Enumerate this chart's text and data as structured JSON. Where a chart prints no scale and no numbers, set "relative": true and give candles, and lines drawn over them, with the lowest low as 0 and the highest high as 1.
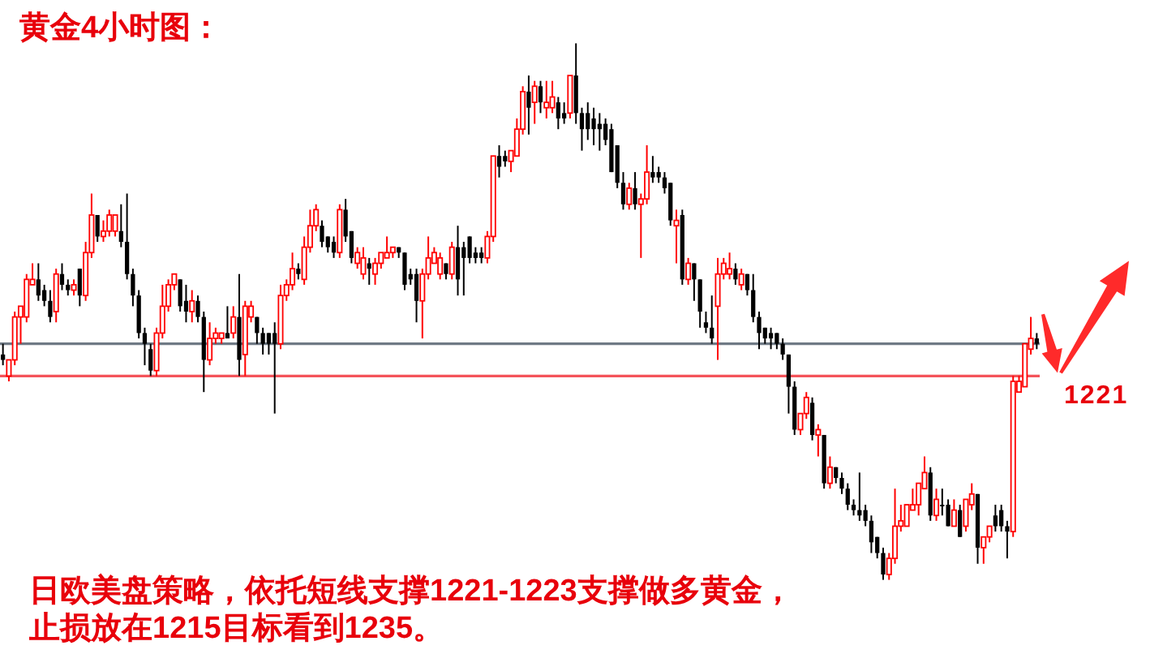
{
  "chart_data": {
    "type": "candlestick",
    "relative": true,
    "title": "黄金4小时图：",
    "annotations": [
      "日欧美盘策略，依托短线支撑1221-1223支撑做多黄金，止损放在1215目标看到1235。",
      "1221"
    ],
    "ref_lines": [
      {
        "axis": "y",
        "value": 0.44,
        "color": "#6f7a85"
      },
      {
        "axis": "y",
        "value": 0.38,
        "color": "#f4535a"
      }
    ],
    "categories": [
      null,
      null,
      null,
      null,
      null,
      null,
      null,
      null,
      null,
      null,
      null,
      null,
      null,
      null,
      null,
      null,
      null,
      null,
      null,
      null,
      null,
      null,
      null,
      null,
      null,
      null,
      null,
      null,
      null,
      null,
      null,
      null,
      null,
      null,
      null,
      null,
      null,
      null,
      null,
      null,
      null,
      null,
      null,
      null,
      null,
      null,
      null,
      null,
      null,
      null,
      null,
      null,
      null,
      null,
      null,
      null,
      null,
      null,
      null,
      null,
      null,
      null,
      null,
      null,
      null,
      null,
      null,
      null,
      null,
      null,
      null,
      null,
      null,
      null,
      null,
      null,
      null,
      null,
      null,
      null,
      null,
      null,
      null,
      null,
      null,
      null,
      null,
      null,
      null,
      null,
      null,
      null,
      null,
      null,
      null,
      null,
      null,
      null,
      null,
      null,
      null,
      null,
      null,
      null,
      null,
      null,
      null,
      null,
      null,
      null,
      null,
      null,
      null,
      null,
      null,
      null,
      null,
      null,
      null,
      null,
      null,
      null,
      null,
      null,
      null,
      null,
      null,
      null,
      null,
      null,
      null,
      null,
      null,
      null,
      null,
      null,
      null,
      null,
      null,
      null,
      null,
      null,
      null,
      null,
      null,
      null,
      null,
      null,
      null,
      null,
      null,
      null,
      null,
      null,
      null,
      null,
      null,
      null,
      null,
      null,
      null,
      null,
      null,
      null,
      null,
      null,
      null,
      null,
      null,
      null,
      null,
      null,
      null,
      null,
      null,
      null
    ],
    "ohlc": [
      [
        0.42,
        0.44,
        0.4,
        0.41
      ],
      [
        0.38,
        0.41,
        0.37,
        0.41
      ],
      [
        0.41,
        0.5,
        0.4,
        0.49
      ],
      [
        0.49,
        0.51,
        0.44,
        0.51
      ],
      [
        0.49,
        0.57,
        0.48,
        0.56
      ],
      [
        0.55,
        0.59,
        0.55,
        0.56
      ],
      [
        0.56,
        0.59,
        0.52,
        0.53
      ],
      [
        0.54,
        0.55,
        0.51,
        0.52
      ],
      [
        0.52,
        0.54,
        0.48,
        0.49
      ],
      [
        0.5,
        0.58,
        0.48,
        0.57
      ],
      [
        0.57,
        0.59,
        0.54,
        0.55
      ],
      [
        0.55,
        0.56,
        0.53,
        0.54
      ],
      [
        0.54,
        0.56,
        0.53,
        0.55
      ],
      [
        0.58,
        0.58,
        0.51,
        0.53
      ],
      [
        0.53,
        0.63,
        0.52,
        0.61
      ],
      [
        0.61,
        0.72,
        0.6,
        0.68
      ],
      [
        0.68,
        0.68,
        0.63,
        0.64
      ],
      [
        0.64,
        0.67,
        0.63,
        0.65
      ],
      [
        0.65,
        0.69,
        0.64,
        0.68
      ],
      [
        0.65,
        0.68,
        0.64,
        0.68
      ],
      [
        0.65,
        0.7,
        0.62,
        0.63
      ],
      [
        0.63,
        0.72,
        0.56,
        0.57
      ],
      [
        0.57,
        0.58,
        0.51,
        0.53
      ],
      [
        0.53,
        0.54,
        0.45,
        0.46
      ],
      [
        0.46,
        0.47,
        0.4,
        0.44
      ],
      [
        0.43,
        0.44,
        0.38,
        0.39
      ],
      [
        0.39,
        0.47,
        0.38,
        0.46
      ],
      [
        0.46,
        0.55,
        0.45,
        0.51
      ],
      [
        0.51,
        0.56,
        0.5,
        0.55
      ],
      [
        0.55,
        0.57,
        0.54,
        0.57
      ],
      [
        0.56,
        0.56,
        0.5,
        0.51
      ],
      [
        0.52,
        0.55,
        0.48,
        0.5
      ],
      [
        0.5,
        0.54,
        0.48,
        0.52
      ],
      [
        0.52,
        0.53,
        0.48,
        0.49
      ],
      [
        0.49,
        0.5,
        0.35,
        0.41
      ],
      [
        0.41,
        0.48,
        0.4,
        0.45
      ],
      [
        0.45,
        0.47,
        0.44,
        0.46
      ],
      [
        0.45,
        0.46,
        0.44,
        0.46
      ],
      [
        0.46,
        0.51,
        0.45,
        0.45
      ],
      [
        0.46,
        0.51,
        0.45,
        0.49
      ],
      [
        0.49,
        0.57,
        0.38,
        0.41
      ],
      [
        0.42,
        0.52,
        0.38,
        0.51
      ],
      [
        0.49,
        0.52,
        0.48,
        0.51
      ],
      [
        0.49,
        0.49,
        0.44,
        0.46
      ],
      [
        0.46,
        0.47,
        0.42,
        0.44
      ],
      [
        0.46,
        0.46,
        0.42,
        0.44
      ],
      [
        0.46,
        0.48,
        0.31,
        0.44
      ],
      [
        0.44,
        0.55,
        0.43,
        0.53
      ],
      [
        0.53,
        0.56,
        0.52,
        0.55
      ],
      [
        0.55,
        0.61,
        0.54,
        0.58
      ],
      [
        0.58,
        0.59,
        0.56,
        0.57
      ],
      [
        0.56,
        0.64,
        0.55,
        0.62
      ],
      [
        0.62,
        0.69,
        0.61,
        0.66
      ],
      [
        0.66,
        0.7,
        0.65,
        0.69
      ],
      [
        0.66,
        0.67,
        0.62,
        0.63
      ],
      [
        0.64,
        0.64,
        0.61,
        0.62
      ],
      [
        0.63,
        0.64,
        0.6,
        0.61
      ],
      [
        0.61,
        0.7,
        0.6,
        0.69
      ],
      [
        0.69,
        0.71,
        0.63,
        0.64
      ],
      [
        0.65,
        0.65,
        0.59,
        0.6
      ],
      [
        0.59,
        0.62,
        0.58,
        0.61
      ],
      [
        0.57,
        0.62,
        0.56,
        0.6
      ],
      [
        0.59,
        0.6,
        0.55,
        0.58
      ],
      [
        0.57,
        0.6,
        0.55,
        0.59
      ],
      [
        0.59,
        0.61,
        0.58,
        0.61
      ],
      [
        0.6,
        0.64,
        0.6,
        0.61
      ],
      [
        0.61,
        0.62,
        0.6,
        0.62
      ],
      [
        0.62,
        0.62,
        0.6,
        0.61
      ],
      [
        0.61,
        0.61,
        0.54,
        0.55
      ],
      [
        0.57,
        0.58,
        0.55,
        0.56
      ],
      [
        0.57,
        0.58,
        0.48,
        0.52
      ],
      [
        0.52,
        0.58,
        0.45,
        0.57
      ],
      [
        0.57,
        0.64,
        0.56,
        0.6
      ],
      [
        0.59,
        0.62,
        0.59,
        0.61
      ],
      [
        0.57,
        0.61,
        0.56,
        0.6
      ],
      [
        0.59,
        0.59,
        0.56,
        0.57
      ],
      [
        0.57,
        0.63,
        0.56,
        0.62
      ],
      [
        0.62,
        0.66,
        0.53,
        0.56
      ],
      [
        0.62,
        0.63,
        0.53,
        0.6
      ],
      [
        0.64,
        0.64,
        0.59,
        0.6
      ],
      [
        0.61,
        0.62,
        0.59,
        0.6
      ],
      [
        0.61,
        0.62,
        0.59,
        0.6
      ],
      [
        0.6,
        0.65,
        0.59,
        0.64
      ],
      [
        0.64,
        0.79,
        0.63,
        0.79
      ],
      [
        0.79,
        0.81,
        0.75,
        0.77
      ],
      [
        0.79,
        0.8,
        0.77,
        0.78
      ],
      [
        0.78,
        0.8,
        0.76,
        0.8
      ],
      [
        0.79,
        0.86,
        0.79,
        0.84
      ],
      [
        0.84,
        0.92,
        0.83,
        0.91
      ],
      [
        0.91,
        0.94,
        0.83,
        0.88
      ],
      [
        0.89,
        0.93,
        0.85,
        0.92
      ],
      [
        0.92,
        0.93,
        0.87,
        0.89
      ],
      [
        0.88,
        0.93,
        0.86,
        0.89
      ],
      [
        0.88,
        0.93,
        0.87,
        0.9
      ],
      [
        0.89,
        0.9,
        0.84,
        0.86
      ],
      [
        0.87,
        0.89,
        0.85,
        0.86
      ],
      [
        0.87,
        0.94,
        0.86,
        0.94
      ],
      [
        0.94,
        1.0,
        0.85,
        0.87
      ],
      [
        0.87,
        0.88,
        0.8,
        0.84
      ],
      [
        0.87,
        0.89,
        0.82,
        0.84
      ],
      [
        0.86,
        0.88,
        0.81,
        0.84
      ],
      [
        0.85,
        0.87,
        0.8,
        0.84
      ],
      [
        0.85,
        0.86,
        0.81,
        0.82
      ],
      [
        0.84,
        0.85,
        0.76,
        0.76
      ],
      [
        0.81,
        0.81,
        0.73,
        0.74
      ],
      [
        0.74,
        0.76,
        0.69,
        0.7
      ],
      [
        0.7,
        0.74,
        0.69,
        0.73
      ],
      [
        0.73,
        0.76,
        0.69,
        0.7
      ],
      [
        0.7,
        0.72,
        0.6,
        0.71
      ],
      [
        0.71,
        0.81,
        0.7,
        0.76
      ],
      [
        0.76,
        0.79,
        0.74,
        0.75
      ],
      [
        0.76,
        0.77,
        0.74,
        0.75
      ],
      [
        0.75,
        0.76,
        0.72,
        0.73
      ],
      [
        0.74,
        0.74,
        0.66,
        0.67
      ],
      [
        0.66,
        0.69,
        0.59,
        0.67
      ],
      [
        0.68,
        0.69,
        0.55,
        0.56
      ],
      [
        0.56,
        0.6,
        0.55,
        0.59
      ],
      [
        0.59,
        0.59,
        0.52,
        0.56
      ],
      [
        0.56,
        0.56,
        0.47,
        0.5
      ],
      [
        0.48,
        0.5,
        0.46,
        0.47
      ],
      [
        0.47,
        0.53,
        0.44,
        0.45
      ],
      [
        0.51,
        0.6,
        0.41,
        0.57
      ],
      [
        0.57,
        0.6,
        0.56,
        0.59
      ],
      [
        0.57,
        0.61,
        0.56,
        0.58
      ],
      [
        0.58,
        0.59,
        0.55,
        0.56
      ],
      [
        0.55,
        0.58,
        0.54,
        0.57
      ],
      [
        0.57,
        0.57,
        0.53,
        0.54
      ],
      [
        0.54,
        0.57,
        0.48,
        0.49
      ],
      [
        0.49,
        0.5,
        0.43,
        0.46
      ],
      [
        0.47,
        0.47,
        0.44,
        0.45
      ],
      [
        0.46,
        0.47,
        0.43,
        0.45
      ],
      [
        0.46,
        0.46,
        0.43,
        0.44
      ],
      [
        0.44,
        0.45,
        0.41,
        0.42
      ],
      [
        0.42,
        0.42,
        0.31,
        0.36
      ],
      [
        0.36,
        0.37,
        0.27,
        0.28
      ],
      [
        0.28,
        0.31,
        0.27,
        0.31
      ],
      [
        0.31,
        0.35,
        0.3,
        0.34
      ],
      [
        0.33,
        0.34,
        0.26,
        0.27
      ],
      [
        0.27,
        0.29,
        0.23,
        0.28
      ],
      [
        0.27,
        0.27,
        0.17,
        0.18
      ],
      [
        0.18,
        0.23,
        0.17,
        0.21
      ],
      [
        0.21,
        0.21,
        0.18,
        0.19
      ],
      [
        0.19,
        0.2,
        0.16,
        0.17
      ],
      [
        0.17,
        0.18,
        0.13,
        0.14
      ],
      [
        0.14,
        0.15,
        0.12,
        0.13
      ],
      [
        0.13,
        0.2,
        0.11,
        0.12
      ],
      [
        0.13,
        0.14,
        0.1,
        0.11
      ],
      [
        0.11,
        0.12,
        0.05,
        0.07
      ],
      [
        0.08,
        0.08,
        0.04,
        0.05
      ],
      [
        0.05,
        0.06,
        0.0,
        0.01
      ],
      [
        0.01,
        0.05,
        0.0,
        0.04
      ],
      [
        0.04,
        0.17,
        0.03,
        0.1
      ],
      [
        0.1,
        0.14,
        0.09,
        0.11
      ],
      [
        0.1,
        0.14,
        0.1,
        0.14
      ],
      [
        0.13,
        0.17,
        0.13,
        0.14
      ],
      [
        0.14,
        0.18,
        0.12,
        0.18
      ],
      [
        0.17,
        0.23,
        0.17,
        0.2
      ],
      [
        0.2,
        0.21,
        0.11,
        0.12
      ],
      [
        0.12,
        0.17,
        0.11,
        0.15
      ],
      [
        0.14,
        0.17,
        0.12,
        0.14
      ],
      [
        0.14,
        0.15,
        0.1,
        0.1
      ],
      [
        0.1,
        0.15,
        0.1,
        0.13
      ],
      [
        0.13,
        0.14,
        0.08,
        0.08
      ],
      [
        0.1,
        0.15,
        0.09,
        0.15
      ],
      [
        0.14,
        0.18,
        0.13,
        0.16
      ],
      [
        0.16,
        0.16,
        0.03,
        0.06
      ],
      [
        0.06,
        0.08,
        0.03,
        0.08
      ],
      [
        0.08,
        0.1,
        0.07,
        0.1
      ],
      [
        0.12,
        0.14,
        0.09,
        0.1
      ],
      [
        0.13,
        0.14,
        0.09,
        0.1
      ],
      [
        0.1,
        0.11,
        0.04,
        0.09
      ],
      [
        0.09,
        0.38,
        0.08,
        0.37
      ],
      [
        0.35,
        0.38,
        0.35,
        0.37
      ],
      [
        0.36,
        0.44,
        0.36,
        0.44
      ],
      [
        0.43,
        0.49,
        0.42,
        0.45
      ],
      [
        0.45,
        0.46,
        0.43,
        0.44
      ]
    ],
    "colors": [
      "#000000",
      "#ff0000",
      "#ff0000",
      "#ff0000",
      "#ff0000",
      "#ff0000",
      "#000000",
      "#000000",
      "#000000",
      "#ff0000",
      "#000000",
      "#000000",
      "#ff0000",
      "#000000",
      "#ff0000",
      "#ff0000",
      "#000000",
      "#ff0000",
      "#ff0000",
      "#ff0000",
      "#000000",
      "#000000",
      "#000000",
      "#000000",
      "#000000",
      "#000000",
      "#ff0000",
      "#ff0000",
      "#ff0000",
      "#ff0000",
      "#000000",
      "#000000",
      "#ff0000",
      "#000000",
      "#000000",
      "#ff0000",
      "#ff0000",
      "#ff0000",
      "#000000",
      "#ff0000",
      "#000000",
      "#ff0000",
      "#ff0000",
      "#000000",
      "#000000",
      "#000000",
      "#000000",
      "#ff0000",
      "#ff0000",
      "#ff0000",
      "#000000",
      "#ff0000",
      "#ff0000",
      "#ff0000",
      "#000000",
      "#000000",
      "#000000",
      "#ff0000",
      "#000000",
      "#000000",
      "#ff0000",
      "#ff0000",
      "#000000",
      "#ff0000",
      "#ff0000",
      "#ff0000",
      "#ff0000",
      "#000000",
      "#000000",
      "#000000",
      "#000000",
      "#ff0000",
      "#ff0000",
      "#ff0000",
      "#ff0000",
      "#000000",
      "#ff0000",
      "#000000",
      "#000000",
      "#000000",
      "#000000",
      "#000000",
      "#ff0000",
      "#ff0000",
      "#000000",
      "#000000",
      "#ff0000",
      "#ff0000",
      "#ff0000",
      "#000000",
      "#ff0000",
      "#000000",
      "#ff0000",
      "#ff0000",
      "#000000",
      "#000000",
      "#ff0000",
      "#000000",
      "#000000",
      "#000000",
      "#000000",
      "#000000",
      "#000000",
      "#000000",
      "#000000",
      "#000000",
      "#ff0000",
      "#000000",
      "#ff0000",
      "#ff0000",
      "#000000",
      "#000000",
      "#000000",
      "#000000",
      "#ff0000",
      "#000000",
      "#ff0000",
      "#000000",
      "#000000",
      "#000000",
      "#000000",
      "#ff0000",
      "#ff0000",
      "#ff0000",
      "#000000",
      "#ff0000",
      "#000000",
      "#000000",
      "#000000",
      "#000000",
      "#000000",
      "#000000",
      "#000000",
      "#000000",
      "#000000",
      "#ff0000",
      "#ff0000",
      "#000000",
      "#ff0000",
      "#000000",
      "#ff0000",
      "#000000",
      "#000000",
      "#000000",
      "#000000",
      "#000000",
      "#000000",
      "#000000",
      "#000000",
      "#000000",
      "#ff0000",
      "#ff0000",
      "#ff0000",
      "#ff0000",
      "#ff0000",
      "#ff0000",
      "#ff0000",
      "#000000",
      "#ff0000",
      "#000000",
      "#000000",
      "#ff0000",
      "#000000",
      "#ff0000",
      "#ff0000",
      "#000000",
      "#ff0000",
      "#ff0000",
      "#000000",
      "#000000",
      "#000000",
      "#ff0000",
      "#ff0000",
      "#ff0000",
      "#ff0000",
      "#000000"
    ]
  }
}
